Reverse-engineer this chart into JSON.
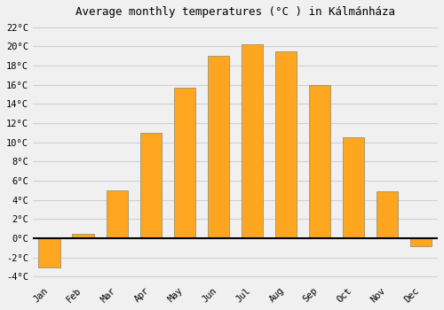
{
  "months": [
    "Jan",
    "Feb",
    "Mar",
    "Apr",
    "May",
    "Jun",
    "Jul",
    "Aug",
    "Sep",
    "Oct",
    "Nov",
    "Dec"
  ],
  "values": [
    -3.0,
    0.5,
    5.0,
    11.0,
    15.7,
    19.0,
    20.2,
    19.5,
    16.0,
    10.5,
    4.9,
    -0.8
  ],
  "bar_color": "#FFA620",
  "bar_edge_color": "#888866",
  "title": "Average monthly temperatures (°C ) in Kálmánháza",
  "ylim": [
    -4.5,
    22.5
  ],
  "yticks": [
    -4,
    -2,
    0,
    2,
    4,
    6,
    8,
    10,
    12,
    14,
    16,
    18,
    20,
    22
  ],
  "background_color": "#f0f0f0",
  "grid_color": "#d0d0d0",
  "zero_line_color": "#000000",
  "title_fontsize": 9,
  "tick_fontsize": 7.5,
  "font_family": "monospace"
}
